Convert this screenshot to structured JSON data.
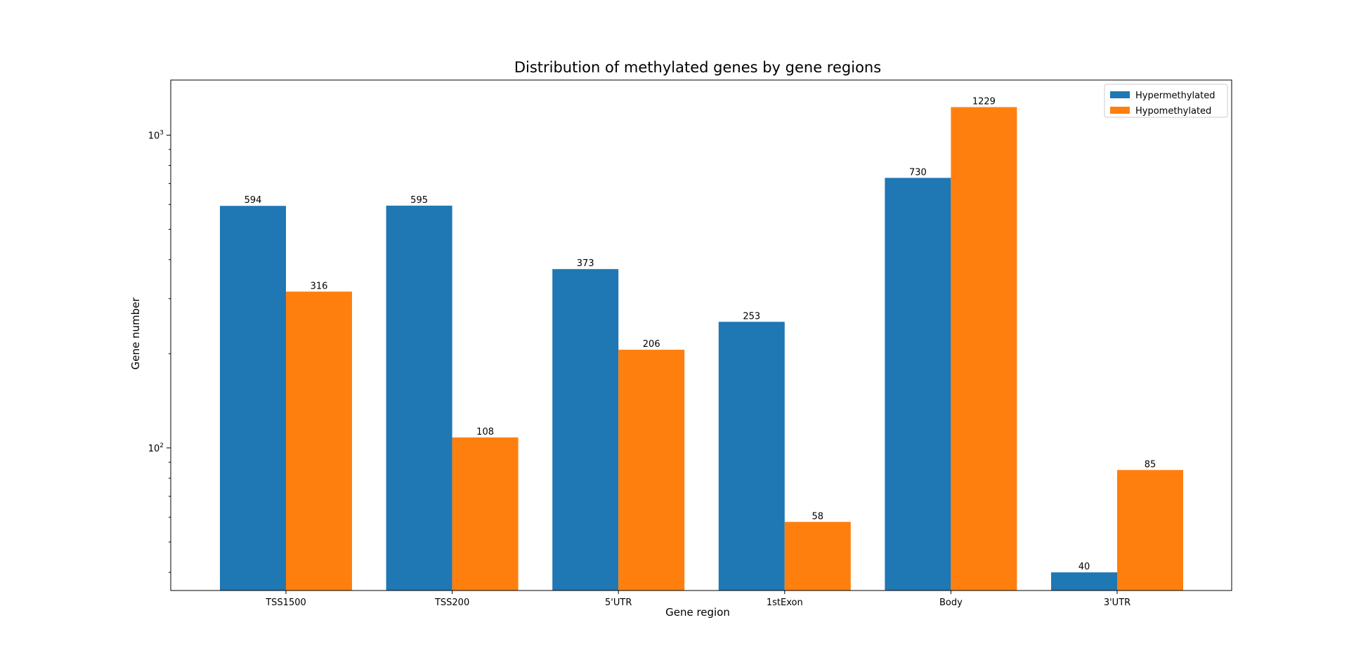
{
  "chart_data": {
    "type": "bar",
    "title": "Distribution of methylated genes by gene regions",
    "xlabel": "Gene region",
    "ylabel": "Gene number",
    "yscale": "log",
    "ylim": [
      35,
      1500
    ],
    "yticks": [
      {
        "value": 100,
        "base": "10",
        "exp": "2"
      },
      {
        "value": 1000,
        "base": "10",
        "exp": "3"
      }
    ],
    "categories": [
      "TSS1500",
      "TSS200",
      "5'UTR",
      "1stExon",
      "Body",
      "3'UTR"
    ],
    "series": [
      {
        "name": "Hypermethylated",
        "color": "#1f77b4",
        "values": [
          594,
          595,
          373,
          253,
          730,
          40
        ]
      },
      {
        "name": "Hypomethylated",
        "color": "#ff7f0e",
        "values": [
          316,
          108,
          206,
          58,
          1229,
          85
        ]
      }
    ],
    "grid": false,
    "legend": "top-right"
  }
}
